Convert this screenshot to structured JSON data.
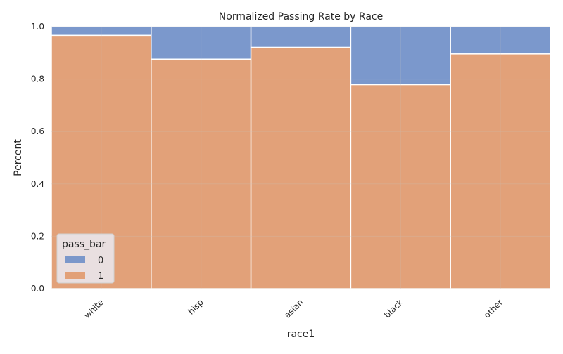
{
  "chart_data": {
    "type": "bar",
    "stacked": true,
    "normalized": true,
    "title": "Normalized Passing Rate by Race",
    "xlabel": "race1",
    "ylabel": "Percent",
    "ylim": [
      0,
      1
    ],
    "yticks": [
      "0.0",
      "0.2",
      "0.4",
      "0.6",
      "0.8",
      "1.0"
    ],
    "categories": [
      "white",
      "hisp",
      "asian",
      "black",
      "other"
    ],
    "series": [
      {
        "name": "1",
        "color": "#e1996b",
        "values": [
          0.967,
          0.876,
          0.921,
          0.779,
          0.896
        ]
      },
      {
        "name": "0",
        "color": "#6f8fc8",
        "values": [
          0.033,
          0.124,
          0.079,
          0.221,
          0.104
        ]
      }
    ],
    "legend": {
      "title": "pass_bar",
      "placement": "lower-left",
      "entries": [
        {
          "label": "0",
          "color": "#6f8fc8"
        },
        {
          "label": "1",
          "color": "#e1996b"
        }
      ]
    },
    "grid": true,
    "background": "#eaeaf2"
  }
}
